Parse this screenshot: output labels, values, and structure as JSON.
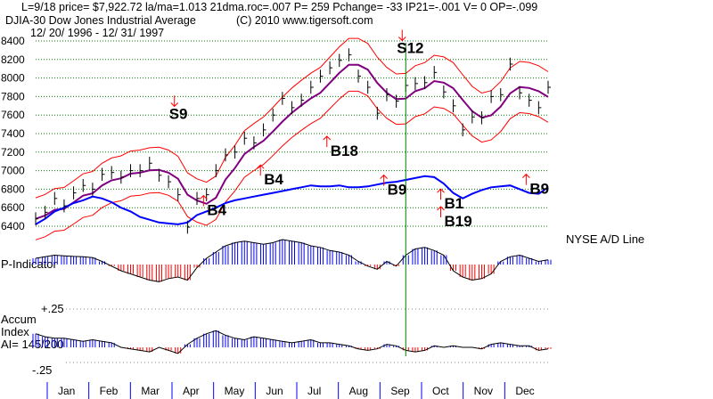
{
  "chart_data": {
    "type": "line",
    "header": "L=9/18  price= $7,922.72  la/ma=1.013 21dma.roc=.007 P=  259 Pchange= -33 IP21=-.001 V= 0 OP=-.099",
    "title": "DJIA-30  Dow Jones Industrial Average",
    "copyright": "(C) 2010 www.tigersoft.com",
    "date_range": "12/ 20/ 1996 - 12/ 31/ 1997",
    "y_ticks": [
      "8400",
      "8200",
      "8000",
      "7800",
      "7600",
      "7400",
      "7200",
      "7000",
      "6800",
      "6600",
      "6400"
    ],
    "ylim": [
      6400,
      8400
    ],
    "months": [
      "Jan",
      "Feb",
      "Mar",
      "Apr",
      "May",
      "Jun",
      "Jul",
      "Aug",
      "Sep",
      "Oct",
      "Nov",
      "Dec"
    ],
    "price": [
      6480,
      6550,
      6700,
      6620,
      6760,
      6840,
      6800,
      6960,
      6980,
      6930,
      7000,
      7000,
      7080,
      6950,
      6880,
      6740,
      6390,
      6700,
      6740,
      7000,
      7170,
      7200,
      7350,
      7300,
      7440,
      7600,
      7780,
      7680,
      7760,
      7900,
      8020,
      8110,
      8190,
      8250,
      8020,
      7900,
      7620,
      7820,
      7750,
      7920,
      7940,
      7950,
      8060,
      7850,
      7700,
      7440,
      7580,
      7570,
      7800,
      7820,
      8150,
      7840,
      7760,
      7680,
      7900
    ],
    "ad_line": [
      6420,
      6480,
      6560,
      6600,
      6650,
      6680,
      6720,
      6700,
      6660,
      6600,
      6560,
      6500,
      6470,
      6440,
      6430,
      6420,
      6440,
      6520,
      6560,
      6600,
      6650,
      6680,
      6700,
      6720,
      6740,
      6760,
      6780,
      6800,
      6820,
      6840,
      6830,
      6830,
      6840,
      6820,
      6820,
      6830,
      6850,
      6870,
      6880,
      6900,
      6920,
      6940,
      6930,
      6860,
      6760,
      6700,
      6750,
      6790,
      6820,
      6830,
      6840,
      6800,
      6760,
      6750,
      6820
    ],
    "p_indicator": [
      20,
      25,
      30,
      28,
      26,
      25,
      22,
      10,
      -5,
      -20,
      -30,
      -40,
      -50,
      -55,
      -45,
      -40,
      -50,
      -10,
      20,
      40,
      60,
      70,
      75,
      70,
      65,
      70,
      80,
      75,
      70,
      60,
      55,
      45,
      40,
      30,
      10,
      -5,
      -15,
      10,
      -5,
      30,
      50,
      55,
      45,
      30,
      -20,
      -40,
      -50,
      -45,
      -30,
      10,
      25,
      30,
      20,
      10,
      15
    ],
    "accum_index": [
      0.09,
      0.07,
      0.06,
      0.06,
      0.05,
      0.04,
      0.05,
      0.04,
      0.03,
      0.0,
      -0.01,
      -0.02,
      -0.03,
      0.0,
      -0.02,
      -0.04,
      0.02,
      0.06,
      0.09,
      0.11,
      0.08,
      0.06,
      0.05,
      0.07,
      0.06,
      0.05,
      0.04,
      0.03,
      0.04,
      0.05,
      0.03,
      0.03,
      0.02,
      0.01,
      -0.01,
      -0.02,
      -0.01,
      0.02,
      0.01,
      -0.02,
      -0.03,
      -0.02,
      0.01,
      0.0,
      0.01,
      0.0,
      0.0,
      -0.01,
      0.02,
      0.03,
      0.02,
      0.01,
      0.01,
      -0.02,
      -0.01
    ],
    "signals": [
      {
        "label": "S9",
        "week": 15,
        "value": 7560,
        "color": "#000"
      },
      {
        "label": "S12",
        "week": 39,
        "value": 8270,
        "color": "#000"
      },
      {
        "label": "B18",
        "week": 32,
        "value": 7160,
        "color": "#000"
      },
      {
        "label": "B4",
        "week": 25,
        "value": 6850,
        "color": "#000"
      },
      {
        "label": "B4",
        "week": 19,
        "value": 6520,
        "color": "#000"
      },
      {
        "label": "B9",
        "week": 38,
        "value": 6740,
        "color": "#000"
      },
      {
        "label": "B9",
        "week": 53,
        "value": 6750,
        "color": "#000"
      },
      {
        "label": "B1",
        "week": 44,
        "value": 6590,
        "color": "#000"
      },
      {
        "label": "B19",
        "week": 44,
        "value": 6400,
        "color": "#000"
      }
    ],
    "ad_label": "NYSE A/D Line",
    "p_label": "P-Indicator",
    "accum_label1": "Accum",
    "accum_label2": "Index",
    "accum_ai": "AI= 145/200",
    "accum_ticks": [
      "+.25",
      "-.25"
    ],
    "marker_week": 39,
    "colors": {
      "price": "#000",
      "ma": "#800080",
      "band": "#ff0000",
      "ad": "#0000ff",
      "pos": "#0000ff",
      "neg": "#ff0000",
      "marker": "#008000"
    }
  }
}
